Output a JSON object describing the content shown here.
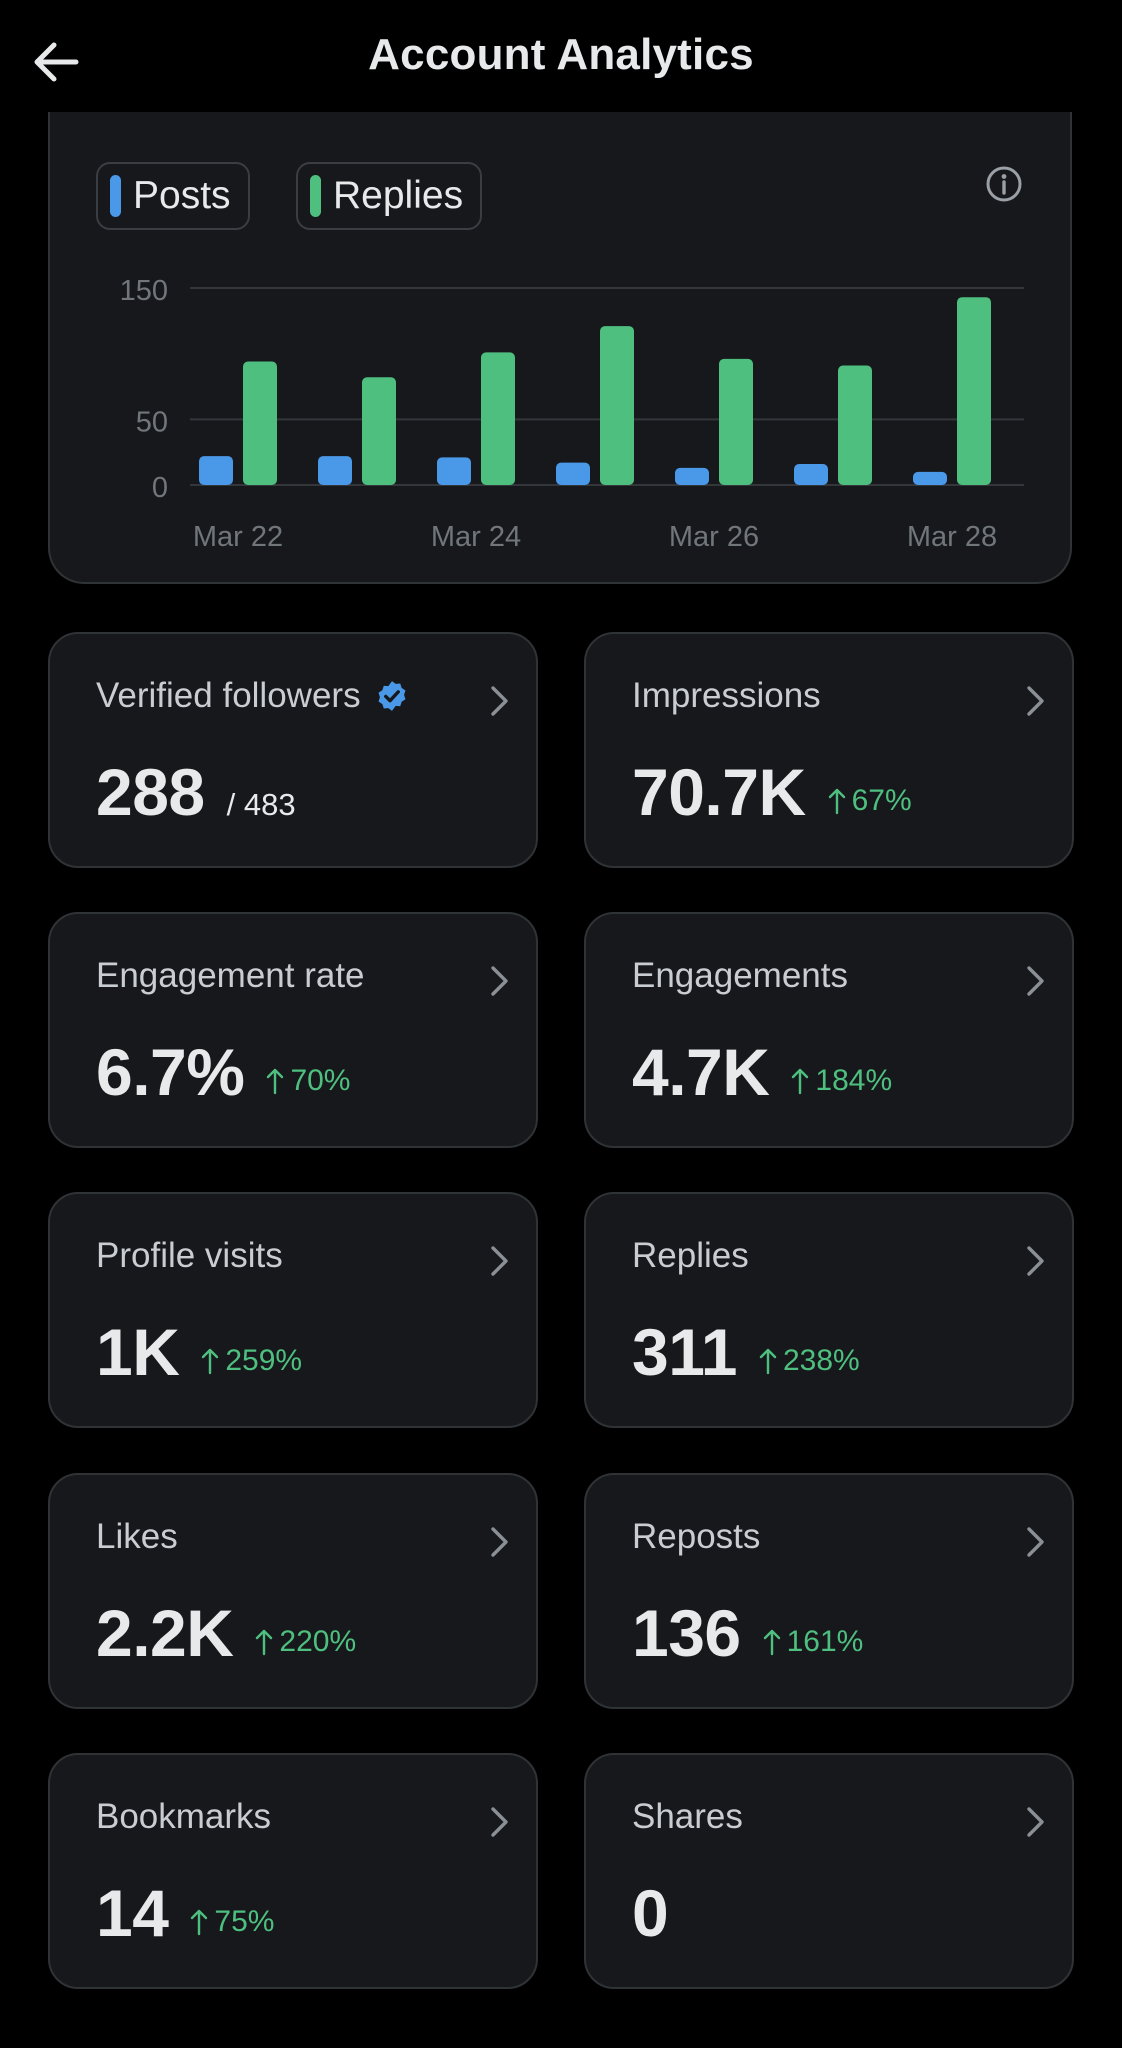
{
  "header": {
    "title": "Account Analytics"
  },
  "chart_data": {
    "type": "bar",
    "categories": [
      "Mar 22",
      "Mar 23",
      "Mar 24",
      "Mar 25",
      "Mar 26",
      "Mar 27",
      "Mar 28"
    ],
    "x_tick_labels": [
      "Mar 22",
      "Mar 24",
      "Mar 26",
      "Mar 28"
    ],
    "y_tick_labels": [
      "150",
      "50",
      "0"
    ],
    "y_ticks": [
      150,
      50,
      0
    ],
    "ylim": [
      0,
      150
    ],
    "grid": true,
    "legend_position": "top-left",
    "series": [
      {
        "name": "Posts",
        "color": "#4a99e9",
        "values": [
          22,
          22,
          21,
          17,
          13,
          16,
          10
        ]
      },
      {
        "name": "Replies",
        "color": "#4fbf7f",
        "values": [
          94,
          82,
          101,
          121,
          96,
          91,
          143
        ]
      }
    ]
  },
  "colors": {
    "background": "#000000",
    "card": "#16181c",
    "border": "#2f3336",
    "positive": "#4fbf7f",
    "verified": "#4a99e9"
  },
  "stats": [
    {
      "label": "Verified followers",
      "value": "288",
      "total": "/ 483",
      "change": "",
      "verified_icon": "verified-badge-icon"
    },
    {
      "label": "Impressions",
      "value": "70.7K",
      "total": "",
      "change": "67%"
    },
    {
      "label": "Engagement rate",
      "value": "6.7%",
      "total": "",
      "change": "70%"
    },
    {
      "label": "Engagements",
      "value": "4.7K",
      "total": "",
      "change": "184%"
    },
    {
      "label": "Profile visits",
      "value": "1K",
      "total": "",
      "change": "259%"
    },
    {
      "label": "Replies",
      "value": "311",
      "total": "",
      "change": "238%"
    },
    {
      "label": "Likes",
      "value": "2.2K",
      "total": "",
      "change": "220%"
    },
    {
      "label": "Reposts",
      "value": "136",
      "total": "",
      "change": "161%"
    },
    {
      "label": "Bookmarks",
      "value": "14",
      "total": "",
      "change": "75%"
    },
    {
      "label": "Shares",
      "value": "0",
      "total": "",
      "change": ""
    }
  ],
  "icons": {
    "back": "arrow-left-icon",
    "info": "info-icon",
    "chevron": "chevron-right-icon",
    "trend": "arrow-up-icon"
  }
}
